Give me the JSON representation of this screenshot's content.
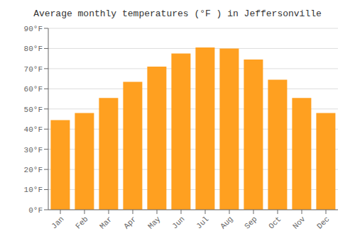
{
  "chart_data": {
    "type": "bar",
    "title": "Average monthly temperatures (°F ) in Jeffersonville",
    "categories": [
      "Jan",
      "Feb",
      "Mar",
      "Apr",
      "May",
      "Jun",
      "Jul",
      "Aug",
      "Sep",
      "Oct",
      "Nov",
      "Dec"
    ],
    "values": [
      44.5,
      48.0,
      55.5,
      63.5,
      71.0,
      77.5,
      80.5,
      80.0,
      74.5,
      64.5,
      55.5,
      48.0
    ],
    "color": "#FFA020",
    "ylim": [
      0,
      90
    ],
    "yticks": [
      {
        "value": 0,
        "label": "0°F"
      },
      {
        "value": 10,
        "label": "10°F"
      },
      {
        "value": 20,
        "label": "20°F"
      },
      {
        "value": 30,
        "label": "30°F"
      },
      {
        "value": 40,
        "label": "40°F"
      },
      {
        "value": 50,
        "label": "50°F"
      },
      {
        "value": 60,
        "label": "60°F"
      },
      {
        "value": 70,
        "label": "70°F"
      },
      {
        "value": 80,
        "label": "80°F"
      },
      {
        "value": 90,
        "label": "90°F"
      }
    ],
    "grid": true
  }
}
